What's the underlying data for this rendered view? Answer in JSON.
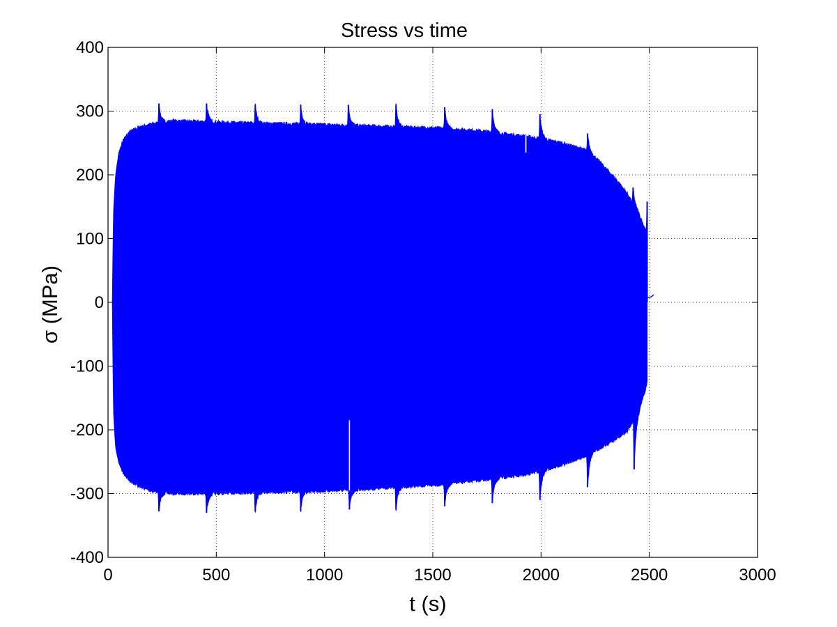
{
  "chart_data": {
    "type": "line",
    "title": "Stress vs time",
    "xlabel": "t (s)",
    "ylabel": "σ (MPa)",
    "xlim": [
      0,
      3000
    ],
    "ylim": [
      -400,
      400
    ],
    "xticks": [
      0,
      500,
      1000,
      1500,
      2000,
      2500,
      3000
    ],
    "yticks": [
      -400,
      -300,
      -200,
      -100,
      0,
      100,
      200,
      300,
      400
    ],
    "xtick_labels": [
      "0",
      "500",
      "1000",
      "1500",
      "2000",
      "2500",
      "3000"
    ],
    "ytick_labels": [
      "-400",
      "-300",
      "-200",
      "-100",
      "0",
      "100",
      "200",
      "300",
      "400"
    ],
    "grid": true,
    "series_color": "#0000ff",
    "series": [
      {
        "upper_envelope": {
          "t": [
            20,
            25,
            35,
            50,
            70,
            100,
            150,
            200,
            300,
            500,
            700,
            900,
            1100,
            1300,
            1500,
            1700,
            1900,
            2000,
            2100,
            2200,
            2250,
            2300,
            2350,
            2400,
            2450,
            2480,
            2490
          ],
          "sigma": [
            0,
            140,
            200,
            235,
            255,
            268,
            276,
            280,
            285,
            283,
            281,
            280,
            278,
            276,
            274,
            270,
            262,
            257,
            250,
            240,
            228,
            210,
            192,
            170,
            140,
            115,
            110
          ]
        },
        "lower_envelope": {
          "t": [
            20,
            25,
            35,
            50,
            70,
            100,
            150,
            200,
            300,
            500,
            700,
            900,
            1100,
            1300,
            1500,
            1700,
            1900,
            2000,
            2100,
            2200,
            2250,
            2300,
            2350,
            2400,
            2450,
            2480,
            2490
          ],
          "sigma": [
            0,
            -170,
            -228,
            -252,
            -268,
            -280,
            -290,
            -296,
            -300,
            -300,
            -298,
            -297,
            -295,
            -291,
            -287,
            -280,
            -272,
            -265,
            -255,
            -242,
            -233,
            -224,
            -214,
            -202,
            -170,
            -140,
            -125
          ]
        },
        "upper_spikes": {
          "t": [
            235,
            455,
            680,
            890,
            1110,
            1330,
            1555,
            1775,
            1995,
            2215,
            2425,
            2490
          ],
          "sigma": [
            312,
            312,
            310,
            310,
            310,
            310,
            306,
            303,
            295,
            265,
            180,
            158
          ]
        },
        "lower_spikes": {
          "t": [
            235,
            455,
            680,
            890,
            1115,
            1330,
            1555,
            1775,
            1995,
            2215,
            2430
          ],
          "sigma": [
            -328,
            -330,
            -328,
            -328,
            -325,
            -325,
            -320,
            -315,
            -310,
            -290,
            -262
          ]
        },
        "anomalies": {
          "t": [
            1115,
            1930
          ],
          "sigma": [
            -185,
            235
          ]
        },
        "tail": {
          "t": [
            2490,
            2500,
            2510,
            2520
          ],
          "sigma": [
            8,
            8,
            9,
            12
          ]
        }
      }
    ]
  }
}
